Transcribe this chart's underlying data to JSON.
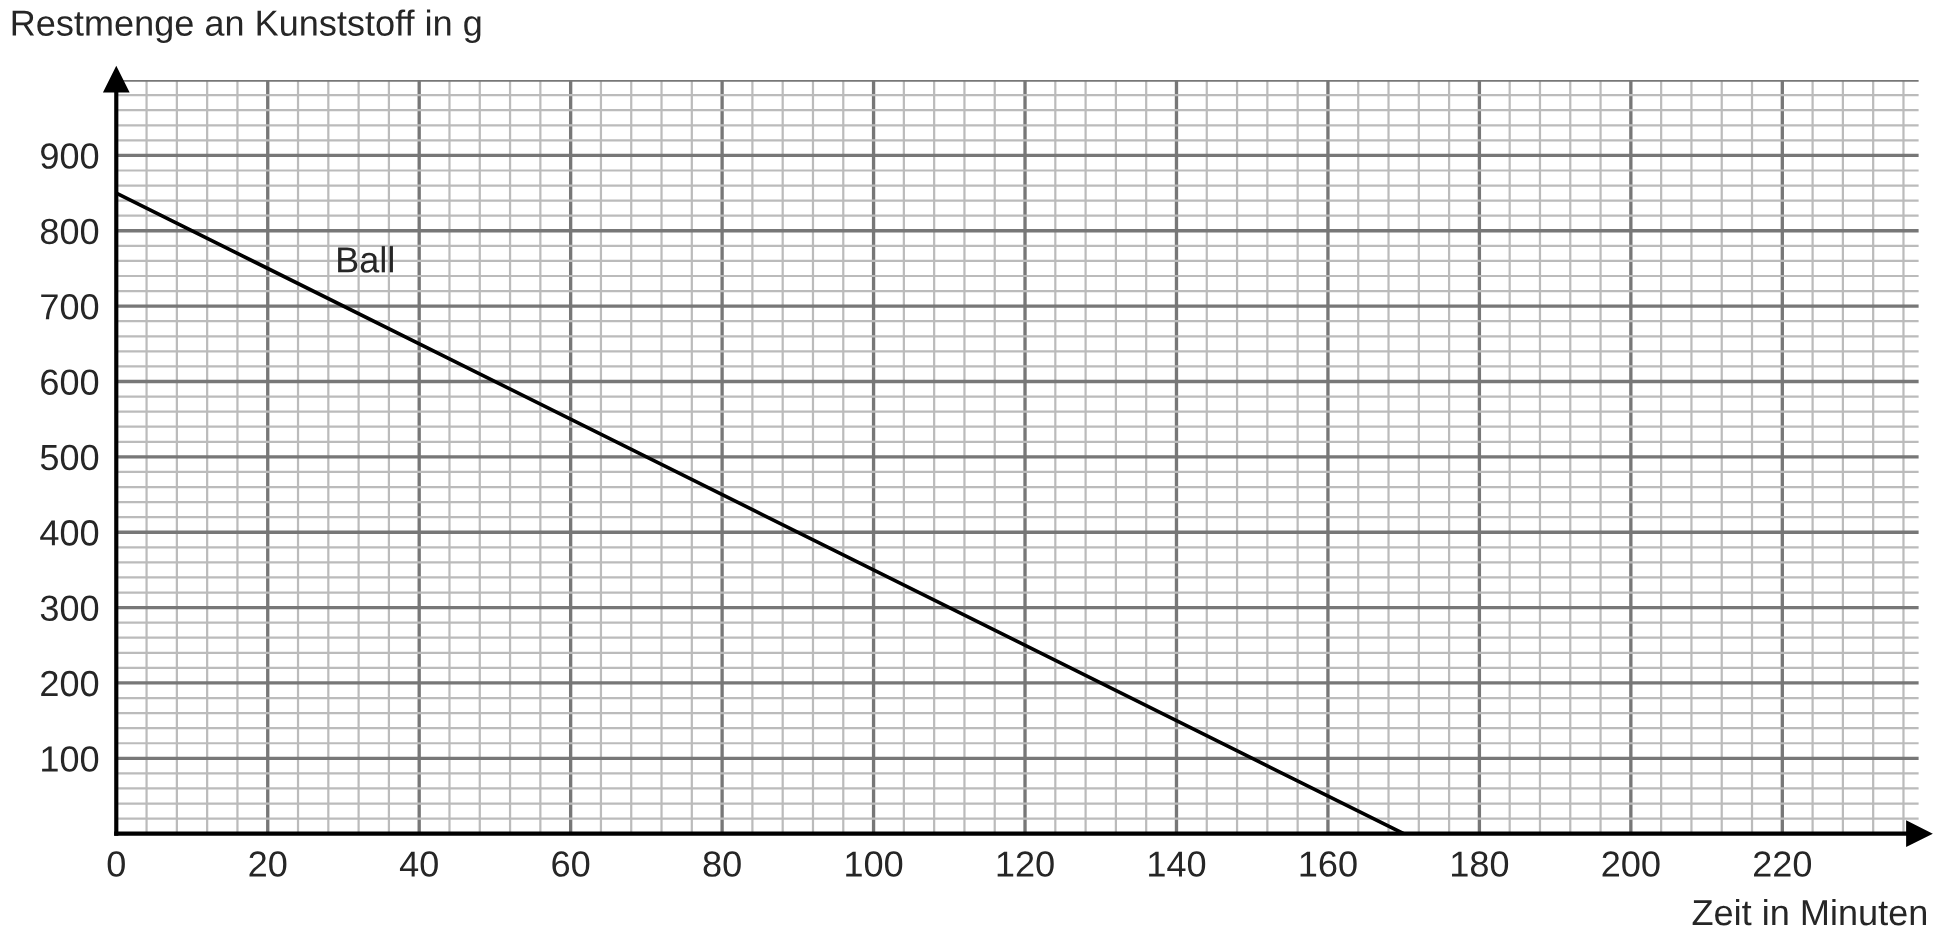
{
  "chart_data": {
    "type": "line",
    "xlabel": "Zeit in Minuten",
    "ylabel": "Restmenge an Kunststoff in g",
    "x": [
      0,
      170
    ],
    "series": [
      {
        "name": "Ball",
        "color": "#000000",
        "values": [
          850,
          0
        ]
      }
    ],
    "xlim": [
      0,
      238
    ],
    "ylim": [
      0,
      1000
    ],
    "xticks": [
      0,
      20,
      40,
      60,
      80,
      100,
      120,
      140,
      160,
      180,
      200,
      220
    ],
    "yticks": [
      {
        "value": 0,
        "label": null
      },
      100,
      200,
      300,
      400,
      500,
      600,
      700,
      800,
      900
    ],
    "grid": true,
    "legend": false,
    "marker": "none",
    "line_style": "solid"
  }
}
